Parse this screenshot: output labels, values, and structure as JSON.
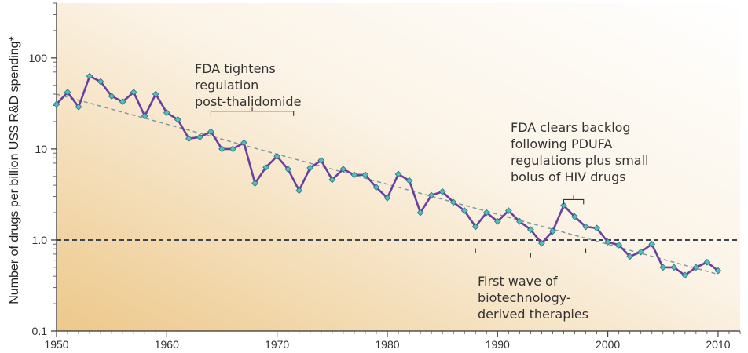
{
  "chart_data": {
    "type": "line",
    "title": "",
    "ylabel": "Number of drugs per billion US$ R&D spending*",
    "xlabel": "",
    "y_scale": "log",
    "xlim": [
      1950,
      2012
    ],
    "ylim": [
      0.1,
      400
    ],
    "xticks": [
      1950,
      1960,
      1970,
      1980,
      1990,
      2000,
      2010
    ],
    "xtick_labels": [
      "1950",
      "1960",
      "1970",
      "1980",
      "1990",
      "2000",
      "2010"
    ],
    "yticks": [
      0.1,
      1,
      10,
      100
    ],
    "ytick_labels": [
      "0.1",
      "1.0",
      "10",
      "100"
    ],
    "grid": false,
    "background_gradient": [
      "#edc88a",
      "#fbf3e6",
      "#ffffff"
    ],
    "series": [
      {
        "color": "#6a3fa0",
        "marker_color": "#4fc0c0",
        "x": [
          1950,
          1951,
          1952,
          1953,
          1954,
          1955,
          1956,
          1957,
          1958,
          1959,
          1960,
          1961,
          1962,
          1963,
          1964,
          1965,
          1966,
          1967,
          1968,
          1969,
          1970,
          1971,
          1972,
          1973,
          1974,
          1975,
          1976,
          1977,
          1978,
          1979,
          1980,
          1981,
          1982,
          1983,
          1984,
          1985,
          1986,
          1987,
          1988,
          1989,
          1990,
          1991,
          1992,
          1993,
          1994,
          1995,
          1996,
          1997,
          1998,
          1999,
          2000,
          2001,
          2002,
          2003,
          2004,
          2005,
          2006,
          2007,
          2008,
          2009,
          2010
        ],
        "y": [
          31,
          42,
          29,
          63,
          55,
          38,
          33,
          42,
          23,
          40,
          25,
          21,
          13,
          13.5,
          15.5,
          10,
          10,
          11.7,
          4.2,
          6.3,
          8.3,
          6.0,
          3.5,
          6.2,
          7.5,
          4.6,
          6.0,
          5.2,
          5.2,
          3.8,
          2.9,
          5.3,
          4.5,
          2.0,
          3.1,
          3.4,
          2.6,
          2.1,
          1.4,
          2.0,
          1.6,
          2.1,
          1.6,
          1.3,
          0.92,
          1.25,
          2.4,
          1.8,
          1.4,
          1.35,
          0.95,
          0.88,
          0.66,
          0.74,
          0.9,
          0.5,
          0.5,
          0.41,
          0.5,
          0.57,
          0.46
        ]
      }
    ],
    "trend_line": {
      "x": [
        1950,
        2010
      ],
      "y": [
        40,
        0.42
      ],
      "color": "#7a9aa0"
    },
    "reference_line": {
      "y": 1.0,
      "color": "#3a4550"
    },
    "annotations": [
      {
        "lines": [
          "FDA tightens",
          "regulation",
          "post-thalidomide"
        ],
        "bracket": {
          "x_range": [
            1964,
            1971.5
          ],
          "y": 26,
          "tick": "up"
        }
      },
      {
        "lines": [
          "FDA clears backlog",
          "following PDUFA",
          "regulations plus small",
          "bolus of HIV drugs"
        ],
        "bracket": {
          "x_range": [
            1996,
            1997.8
          ],
          "y": 2.78,
          "tick": "up"
        }
      },
      {
        "lines": [
          "First wave of",
          "biotechnology-",
          "derived therapies"
        ],
        "bracket": {
          "x_range": [
            1988,
            1998
          ],
          "y": 0.72,
          "tick": "down"
        }
      }
    ]
  }
}
